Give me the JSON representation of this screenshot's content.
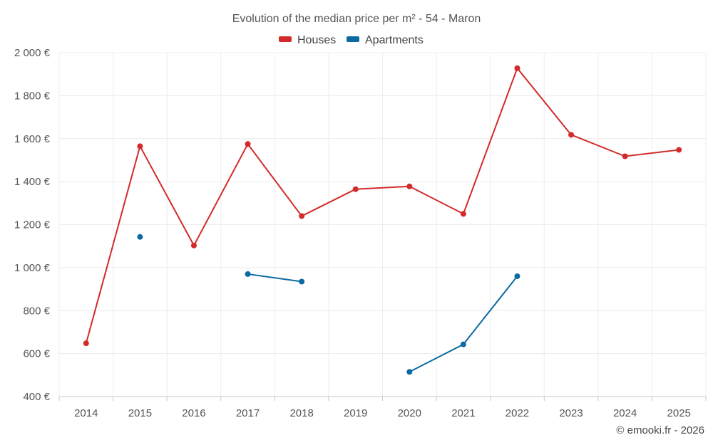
{
  "chart_data": {
    "type": "line",
    "title": "Evolution of the median price per m² - 54 - Maron",
    "categories": [
      "2014",
      "2015",
      "2016",
      "2017",
      "2018",
      "2019",
      "2020",
      "2021",
      "2022",
      "2023",
      "2024",
      "2025"
    ],
    "y_ticks": [
      "400 €",
      "600 €",
      "800 €",
      "1 000 €",
      "1 200 €",
      "1 400 €",
      "1 600 €",
      "1 800 €",
      "2 000 €"
    ],
    "ylim": [
      400,
      2000
    ],
    "series": [
      {
        "name": "Houses",
        "color": "#d32a2a",
        "values": [
          648,
          1565,
          1103,
          1575,
          1240,
          1365,
          1378,
          1250,
          1928,
          1618,
          1518,
          1548
        ]
      },
      {
        "name": "Apartments",
        "color": "#0b6aa2",
        "values": [
          null,
          1143,
          null,
          970,
          935,
          null,
          515,
          643,
          960,
          null,
          null,
          null
        ]
      }
    ],
    "legend_position": "top-center",
    "grid": true
  },
  "credit": "© emooki.fr - 2026"
}
